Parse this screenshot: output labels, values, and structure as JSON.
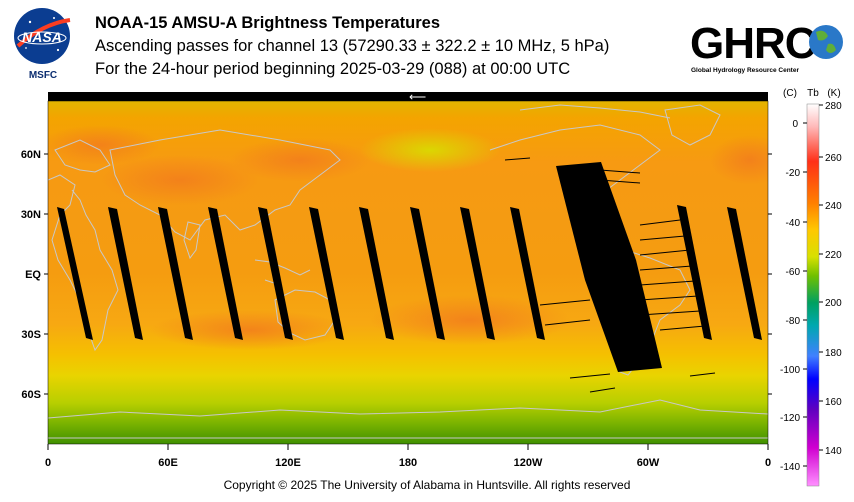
{
  "header": {
    "title": "NOAA-15 AMSU-A Brightness Temperatures",
    "subtitle": "Ascending passes for channel 13 (57290.33 ± 322.2 ± 10 MHz, 5 hPa)",
    "period": "For the 24-hour period beginning 2025-03-29 (088) at 00:00 UTC"
  },
  "logos": {
    "nasa_text": "NASA",
    "nasa_sub": "MSFC",
    "ghrc_text": "GHRC",
    "ghrc_sub": "Global Hydrology Resource Center"
  },
  "map": {
    "lat_labels": [
      "60N",
      "30N",
      "EQ",
      "30S",
      "60S"
    ],
    "lon_labels": [
      "0",
      "60E",
      "120E",
      "180",
      "120W",
      "60W",
      "0"
    ],
    "dateline_arrow": "⟵"
  },
  "colorbar": {
    "header_c": "(C)",
    "header_tb": "Tb",
    "header_k": "(K)",
    "celsius_ticks": [
      "0",
      "-20",
      "-40",
      "-60",
      "-80",
      "-100",
      "-120",
      "-140"
    ],
    "kelvin_ticks": [
      "280",
      "260",
      "240",
      "220",
      "200",
      "180",
      "160",
      "140"
    ],
    "colors": [
      "#ffffff",
      "#ff9a9a",
      "#ff2a10",
      "#ff8000",
      "#ffd000",
      "#d0e000",
      "#60c000",
      "#00a060",
      "#00a0a0",
      "#4080ff",
      "#0000ff",
      "#6000c0",
      "#c000c0",
      "#ff80ff"
    ]
  },
  "footer": {
    "copyright": "Copyright © 2025 The University of Alabama in Huntsville.  All rights reserved"
  }
}
